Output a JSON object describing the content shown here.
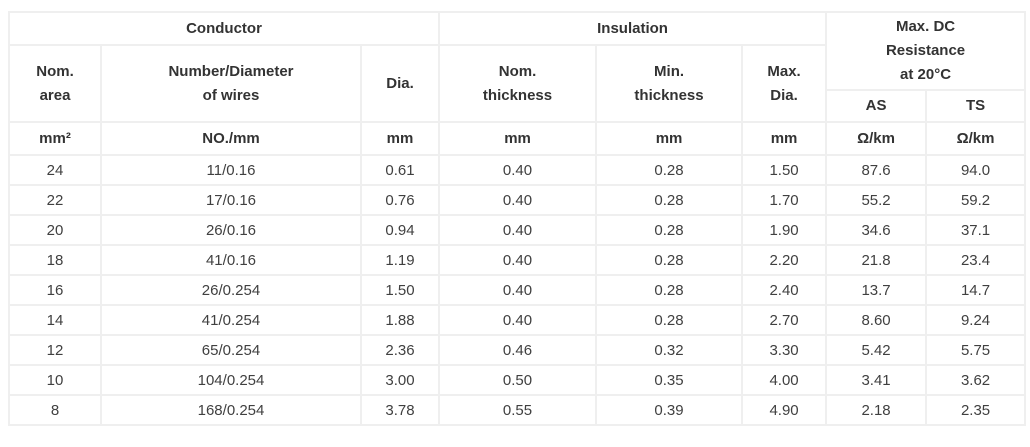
{
  "colors": {
    "background": "#ffffff",
    "border": "#efefef",
    "header_text": "#333333",
    "cell_text": "#404040"
  },
  "chart_data": {
    "type": "table",
    "column_groups": [
      {
        "label": "Conductor",
        "span": 3
      },
      {
        "label": "Insulation",
        "span": 3
      },
      {
        "label": "Max. DC\nResistance\nat 20°C",
        "span": 2
      }
    ],
    "columns": [
      {
        "label": "Nom.\narea",
        "unit": "mm²"
      },
      {
        "label": "Number/Diameter\nof wires",
        "unit": "NO./mm"
      },
      {
        "label": "Dia.",
        "unit": "mm"
      },
      {
        "label": "Nom.\nthickness",
        "unit": "mm"
      },
      {
        "label": "Min.\nthickness",
        "unit": "mm"
      },
      {
        "label": "Max.\nDia.",
        "unit": "mm"
      },
      {
        "label": "AS",
        "unit": "Ω/km"
      },
      {
        "label": "TS",
        "unit": "Ω/km"
      }
    ],
    "rows": [
      [
        "24",
        "11/0.16",
        "0.61",
        "0.40",
        "0.28",
        "1.50",
        "87.6",
        "94.0"
      ],
      [
        "22",
        "17/0.16",
        "0.76",
        "0.40",
        "0.28",
        "1.70",
        "55.2",
        "59.2"
      ],
      [
        "20",
        "26/0.16",
        "0.94",
        "0.40",
        "0.28",
        "1.90",
        "34.6",
        "37.1"
      ],
      [
        "18",
        "41/0.16",
        "1.19",
        "0.40",
        "0.28",
        "2.20",
        "21.8",
        "23.4"
      ],
      [
        "16",
        "26/0.254",
        "1.50",
        "0.40",
        "0.28",
        "2.40",
        "13.7",
        "14.7"
      ],
      [
        "14",
        "41/0.254",
        "1.88",
        "0.40",
        "0.28",
        "2.70",
        "8.60",
        "9.24"
      ],
      [
        "12",
        "65/0.254",
        "2.36",
        "0.46",
        "0.32",
        "3.30",
        "5.42",
        "5.75"
      ],
      [
        "10",
        "104/0.254",
        "3.00",
        "0.50",
        "0.35",
        "4.00",
        "3.41",
        "3.62"
      ],
      [
        "8",
        "168/0.254",
        "3.78",
        "0.55",
        "0.39",
        "4.90",
        "2.18",
        "2.35"
      ]
    ]
  }
}
